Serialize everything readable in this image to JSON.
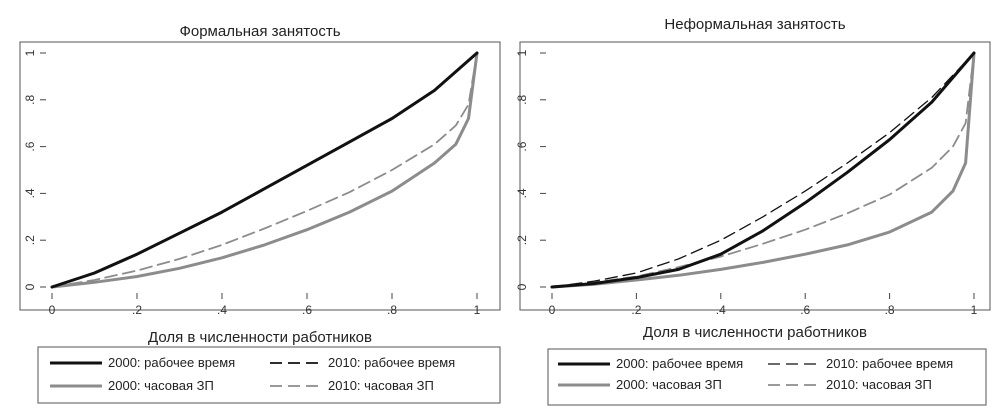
{
  "chart_data": [
    {
      "type": "line",
      "title": "Формальная занятость",
      "xlabel": "Доля в численности работников",
      "ylabel": "",
      "xlim": [
        0,
        1
      ],
      "ylim": [
        0,
        1
      ],
      "x_ticks": [
        0,
        0.2,
        0.4,
        0.6,
        0.8,
        1
      ],
      "x_tick_labels": [
        "0",
        ".2",
        ".4",
        ".6",
        ".8",
        "1"
      ],
      "y_ticks": [
        0,
        0.2,
        0.4,
        0.6,
        0.8,
        1
      ],
      "y_tick_labels": [
        "0",
        ".2",
        ".4",
        ".6",
        ".8",
        "1"
      ],
      "grid": false,
      "legend_position": "bottom",
      "series": [
        {
          "name": "2000: рабочее время",
          "color": "#111111",
          "style": "solid",
          "x": [
            0,
            0.1,
            0.2,
            0.3,
            0.4,
            0.5,
            0.6,
            0.7,
            0.8,
            0.9,
            1.0
          ],
          "y": [
            0,
            0.06,
            0.14,
            0.23,
            0.32,
            0.42,
            0.52,
            0.62,
            0.72,
            0.84,
            1.0
          ]
        },
        {
          "name": "2010: рабочее время",
          "color": "#111111",
          "style": "dashed",
          "x": [
            0,
            0.1,
            0.2,
            0.3,
            0.4,
            0.5,
            0.6,
            0.7,
            0.8,
            0.9,
            1.0
          ],
          "y": [
            0,
            0.062,
            0.142,
            0.232,
            0.322,
            0.422,
            0.522,
            0.622,
            0.722,
            0.842,
            1.0
          ]
        },
        {
          "name": "2000: часовая ЗП",
          "color": "#8c8c8c",
          "style": "solid",
          "x": [
            0,
            0.1,
            0.2,
            0.3,
            0.4,
            0.5,
            0.6,
            0.7,
            0.8,
            0.9,
            0.95,
            0.98,
            1.0
          ],
          "y": [
            0,
            0.02,
            0.045,
            0.08,
            0.125,
            0.18,
            0.245,
            0.32,
            0.41,
            0.53,
            0.61,
            0.72,
            1.0
          ]
        },
        {
          "name": "2010: часовая ЗП",
          "color": "#8c8c8c",
          "style": "dashed",
          "x": [
            0,
            0.1,
            0.2,
            0.3,
            0.4,
            0.5,
            0.6,
            0.7,
            0.8,
            0.9,
            0.95,
            0.98,
            1.0
          ],
          "y": [
            0,
            0.03,
            0.07,
            0.12,
            0.18,
            0.25,
            0.325,
            0.405,
            0.5,
            0.61,
            0.69,
            0.78,
            1.0
          ]
        }
      ]
    },
    {
      "type": "line",
      "title": "Неформальная занятость",
      "xlabel": "Доля в численности работников",
      "ylabel": "",
      "xlim": [
        0,
        1
      ],
      "ylim": [
        0,
        1
      ],
      "x_ticks": [
        0,
        0.2,
        0.4,
        0.6,
        0.8,
        1
      ],
      "x_tick_labels": [
        "0",
        ".2",
        ".4",
        ".6",
        ".8",
        "1"
      ],
      "y_ticks": [
        0,
        0.2,
        0.4,
        0.6,
        0.8,
        1
      ],
      "y_tick_labels": [
        "0",
        ".2",
        ".4",
        ".6",
        ".8",
        "1"
      ],
      "grid": false,
      "legend_position": "bottom",
      "series": [
        {
          "name": "2000: рабочее время",
          "color": "#111111",
          "style": "solid",
          "x": [
            0,
            0.1,
            0.2,
            0.3,
            0.4,
            0.5,
            0.6,
            0.7,
            0.8,
            0.9,
            1.0
          ],
          "y": [
            0,
            0.015,
            0.04,
            0.075,
            0.14,
            0.24,
            0.36,
            0.49,
            0.63,
            0.79,
            1.0
          ]
        },
        {
          "name": "2010: рабочее время",
          "color": "#111111",
          "style": "thin-dashed",
          "x": [
            0,
            0.1,
            0.2,
            0.3,
            0.4,
            0.5,
            0.6,
            0.7,
            0.8,
            0.9,
            1.0
          ],
          "y": [
            0,
            0.025,
            0.06,
            0.12,
            0.2,
            0.3,
            0.41,
            0.53,
            0.66,
            0.81,
            1.0
          ]
        },
        {
          "name": "2000: часовая ЗП",
          "color": "#8c8c8c",
          "style": "solid",
          "x": [
            0,
            0.1,
            0.2,
            0.3,
            0.4,
            0.5,
            0.6,
            0.7,
            0.8,
            0.9,
            0.95,
            0.98,
            1.0
          ],
          "y": [
            0,
            0.012,
            0.03,
            0.05,
            0.075,
            0.105,
            0.14,
            0.18,
            0.235,
            0.32,
            0.41,
            0.53,
            1.0
          ]
        },
        {
          "name": "2010: часовая ЗП",
          "color": "#8c8c8c",
          "style": "dashed",
          "x": [
            0,
            0.1,
            0.2,
            0.3,
            0.4,
            0.5,
            0.6,
            0.7,
            0.8,
            0.9,
            0.95,
            0.98,
            1.0
          ],
          "y": [
            0,
            0.02,
            0.045,
            0.085,
            0.13,
            0.185,
            0.245,
            0.315,
            0.395,
            0.51,
            0.6,
            0.7,
            1.0
          ]
        }
      ]
    }
  ]
}
